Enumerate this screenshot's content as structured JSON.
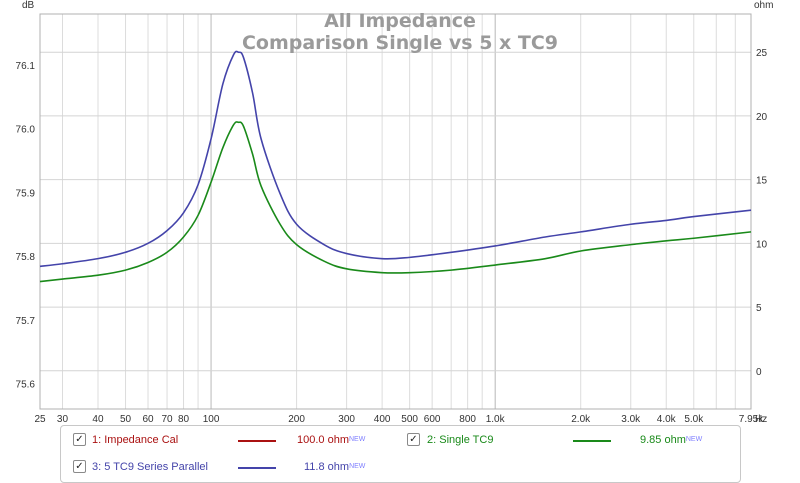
{
  "chart_data": {
    "type": "line",
    "title": "All Impedance",
    "subtitle": "Comparison Single vs 5 x TC9",
    "x_unit": "Hz",
    "x_scale": "log",
    "xlim": [
      25,
      7950
    ],
    "x_ticks": [
      25,
      30,
      40,
      50,
      60,
      70,
      80,
      100,
      200,
      300,
      400,
      500,
      600,
      800,
      1000,
      2000,
      3000,
      4000,
      5000,
      7950
    ],
    "x_tick_labels": [
      "25",
      "30",
      "40",
      "50",
      "60",
      "70",
      "80",
      "100",
      "200",
      "300",
      "400",
      "500",
      "600",
      "800",
      "1.0k",
      "2.0k",
      "3.0k",
      "4.0k",
      "5.0k",
      "7.95k"
    ],
    "left_axis": {
      "unit": "dB",
      "range": [
        75.56,
        76.18
      ],
      "ticks": [
        75.6,
        75.7,
        75.8,
        75.9,
        76.0,
        76.1
      ],
      "tick_labels": [
        "75.6",
        "75.7",
        "75.8",
        "75.9",
        "76.0",
        "76.1"
      ]
    },
    "right_axis": {
      "unit": "ohm",
      "range": [
        -3,
        28
      ],
      "ticks": [
        0,
        5,
        10,
        15,
        20,
        25
      ],
      "tick_labels": [
        "0",
        "5",
        "10",
        "15",
        "20",
        "25"
      ]
    },
    "grid": true,
    "legend_position": "bottom",
    "series": [
      {
        "name": "1: Impedance Cal",
        "value_label": "100.0 ohm",
        "color": "#aa1111",
        "checked": true,
        "x": [],
        "y": []
      },
      {
        "name": "2: Single TC9",
        "value_label": "9.85 ohm",
        "color": "#1a8a1a",
        "checked": true,
        "x": [
          25,
          30,
          40,
          50,
          60,
          70,
          80,
          90,
          100,
          110,
          120,
          125,
          130,
          140,
          150,
          175,
          200,
          250,
          300,
          400,
          500,
          700,
          1000,
          1500,
          2000,
          3000,
          4000,
          5000,
          7950
        ],
        "y": [
          7.0,
          7.2,
          7.5,
          7.9,
          8.5,
          9.3,
          10.5,
          12.2,
          14.8,
          17.5,
          19.3,
          19.5,
          19.2,
          17.0,
          14.5,
          11.5,
          9.9,
          8.6,
          8.0,
          7.7,
          7.7,
          7.9,
          8.3,
          8.8,
          9.4,
          9.9,
          10.2,
          10.4,
          10.9
        ]
      },
      {
        "name": "3: 5 TC9 Series Parallel",
        "value_label": "11.8 ohm",
        "color": "#4444aa",
        "checked": true,
        "x": [
          25,
          30,
          40,
          50,
          60,
          70,
          80,
          90,
          100,
          110,
          120,
          125,
          130,
          140,
          150,
          175,
          200,
          250,
          300,
          400,
          500,
          700,
          1000,
          1500,
          2000,
          3000,
          4000,
          5000,
          7950
        ],
        "y": [
          8.2,
          8.4,
          8.8,
          9.3,
          10.0,
          11.0,
          12.4,
          14.6,
          18.2,
          22.5,
          24.8,
          25.0,
          24.6,
          21.8,
          18.2,
          13.9,
          11.5,
          9.9,
          9.2,
          8.8,
          8.9,
          9.3,
          9.8,
          10.5,
          10.9,
          11.5,
          11.8,
          12.1,
          12.6
        ]
      }
    ]
  },
  "legend": {
    "check_glyph": "✓",
    "new_tag": "NEW"
  }
}
